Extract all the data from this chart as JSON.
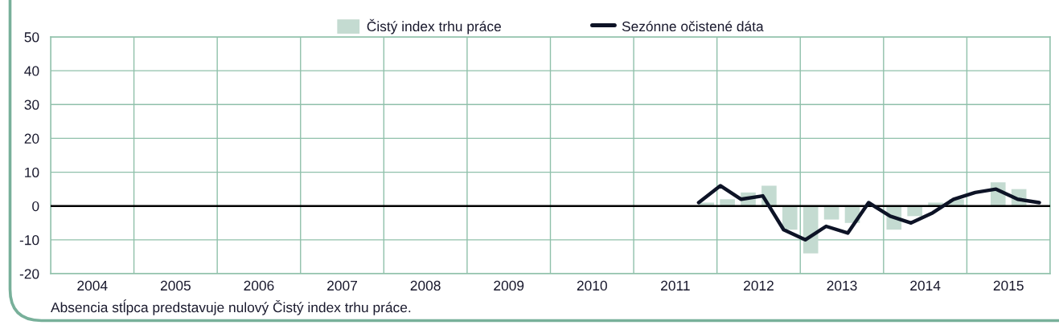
{
  "chart_data": {
    "type": "bar",
    "legend": "top",
    "grid": true,
    "xlim": [
      2004,
      2016
    ],
    "xticks": [
      {
        "value": 2004,
        "label": null
      },
      {
        "value": 2004.5,
        "label": "2004"
      },
      {
        "value": 2005,
        "label": null
      },
      {
        "value": 2005.5,
        "label": "2005"
      },
      {
        "value": 2006,
        "label": null
      },
      {
        "value": 2006.5,
        "label": "2006"
      },
      {
        "value": 2007,
        "label": null
      },
      {
        "value": 2007.5,
        "label": "2007"
      },
      {
        "value": 2008,
        "label": null
      },
      {
        "value": 2008.5,
        "label": "2008"
      },
      {
        "value": 2009,
        "label": null
      },
      {
        "value": 2009.5,
        "label": "2009"
      },
      {
        "value": 2010,
        "label": null
      },
      {
        "value": 2010.5,
        "label": "2010"
      },
      {
        "value": 2011,
        "label": null
      },
      {
        "value": 2011.5,
        "label": "2011"
      },
      {
        "value": 2012,
        "label": null
      },
      {
        "value": 2012.5,
        "label": "2012"
      },
      {
        "value": 2013,
        "label": null
      },
      {
        "value": 2013.5,
        "label": "2013"
      },
      {
        "value": 2014,
        "label": null
      },
      {
        "value": 2014.5,
        "label": "2014"
      },
      {
        "value": 2015,
        "label": null
      },
      {
        "value": 2015.5,
        "label": "2015"
      },
      {
        "value": 2016,
        "label": null
      }
    ],
    "ylim": [
      -20,
      50
    ],
    "yticks": [
      -20,
      -10,
      0,
      10,
      20,
      30,
      40,
      50
    ],
    "series": [
      {
        "name": "Čistý index trhu práce",
        "color": "#c4dbd1",
        "x": [
          2011.875,
          2012.125,
          2012.375,
          2012.625,
          2012.875,
          2013.125,
          2013.375,
          2013.625,
          2013.875,
          2014.125,
          2014.375,
          2014.625,
          2014.875,
          2015.125,
          2015.375,
          2015.625,
          2015.875
        ],
        "values": [
          1,
          2,
          4,
          6,
          -7,
          -14,
          -4,
          -5,
          0,
          -7,
          -3,
          1,
          2,
          0,
          7,
          5,
          0
        ]
      },
      {
        "name": "Sezónne očistené dáta",
        "type": "line",
        "color": "#0d1326",
        "line_style": "solid",
        "x": [
          2011.78,
          2012.04,
          2012.29,
          2012.55,
          2012.8,
          2013.06,
          2013.31,
          2013.57,
          2013.82,
          2014.08,
          2014.33,
          2014.59,
          2014.84,
          2015.1,
          2015.35,
          2015.61,
          2015.87
        ],
        "values": [
          1,
          6,
          2,
          3,
          -7,
          -10,
          -6,
          -8,
          1,
          -3,
          -5,
          -2,
          2,
          4,
          5,
          2,
          1
        ]
      }
    ],
    "ref_lines": [
      {
        "axis": "y",
        "value": 0,
        "color": "#000000",
        "line_style": "solid"
      }
    ],
    "annotations": [
      "Absencia stĺpca predstavuje nulový Čistý index trhu práce."
    ]
  }
}
